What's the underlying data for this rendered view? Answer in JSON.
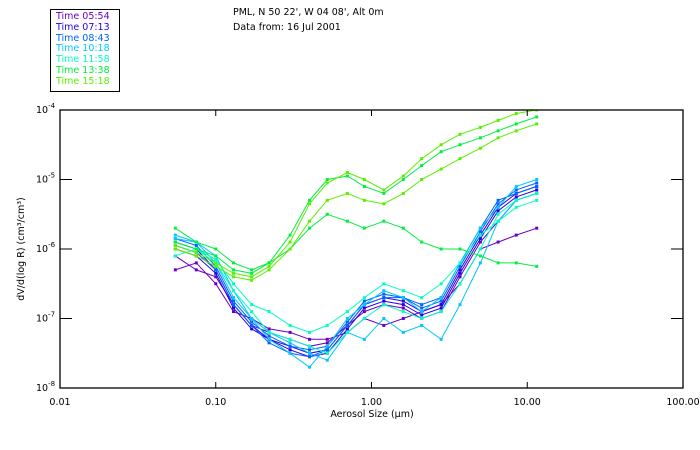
{
  "header": {
    "line1": "PML, N 50 22', W 04 08', Alt 0m",
    "line2": "Data from: 16 Jul 2001"
  },
  "chart_data": {
    "type": "line",
    "xlabel": "Aerosol Size (µm)",
    "ylabel": "dV/d(log R) (cm³/cm³)",
    "xscale": "log",
    "yscale": "log",
    "xlim": [
      0.01,
      100
    ],
    "ylim": [
      1e-08,
      0.0001
    ],
    "xticks": [
      "0.01",
      "0.10",
      "1.00",
      "10.00",
      "100.00"
    ],
    "yticks": [
      {
        "base": "10",
        "exp": "-4"
      },
      {
        "base": "10",
        "exp": "-5"
      },
      {
        "base": "10",
        "exp": "-6"
      },
      {
        "base": "10",
        "exp": "-7"
      },
      {
        "base": "10",
        "exp": "-8"
      }
    ],
    "legend_position": "top-left-outside",
    "x": [
      0.055,
      0.075,
      0.1,
      0.13,
      0.17,
      0.22,
      0.3,
      0.4,
      0.52,
      0.7,
      0.9,
      1.2,
      1.6,
      2.1,
      2.8,
      3.7,
      5,
      6.5,
      8.5,
      11.5
    ],
    "series": [
      {
        "name": "Time 05:54",
        "color": "#6a00c8",
        "log10_values": [
          [
            -6.1,
            -6.3,
            -6.4,
            -6.8,
            -7.1,
            -7.2,
            -7.3,
            -7.4,
            -7.35,
            -7.1,
            -6.9,
            -6.8,
            -6.85,
            -7.0,
            -6.9,
            -6.4,
            -5.9,
            -5.6,
            -5.3,
            -5.2
          ],
          [
            -6.3,
            -6.2,
            -6.5,
            -6.9,
            -7.0,
            -7.15,
            -7.2,
            -7.3,
            -7.3,
            -7.2,
            -7.0,
            -7.1,
            -7.0,
            -6.9,
            -6.8,
            -6.5,
            -6.0,
            -5.9,
            -5.8,
            -5.7
          ]
        ]
      },
      {
        "name": "Time 07:13",
        "color": "#2800e8",
        "log10_values": [
          [
            -5.9,
            -6.0,
            -6.3,
            -6.8,
            -7.1,
            -7.3,
            -7.4,
            -7.5,
            -7.45,
            -7.1,
            -6.8,
            -6.7,
            -6.75,
            -6.9,
            -6.8,
            -6.3,
            -5.8,
            -5.4,
            -5.2,
            -5.1
          ],
          [
            -6.0,
            -6.1,
            -6.35,
            -6.85,
            -7.15,
            -7.3,
            -7.45,
            -7.55,
            -7.5,
            -7.15,
            -6.85,
            -6.75,
            -6.8,
            -6.95,
            -6.85,
            -6.35,
            -5.85,
            -5.45,
            -5.25,
            -5.15
          ]
        ]
      },
      {
        "name": "Time 08:43",
        "color": "#0064ff",
        "log10_values": [
          [
            -5.85,
            -5.95,
            -6.25,
            -6.75,
            -7.05,
            -7.25,
            -7.4,
            -7.45,
            -7.4,
            -7.05,
            -6.75,
            -6.65,
            -6.7,
            -6.85,
            -6.75,
            -6.25,
            -5.75,
            -5.35,
            -5.15,
            -5.05
          ],
          [
            -5.95,
            -6.05,
            -6.3,
            -6.8,
            -7.1,
            -7.35,
            -7.5,
            -7.55,
            -7.45,
            -7.1,
            -6.8,
            -6.7,
            -6.7,
            -6.8,
            -6.7,
            -6.2,
            -5.7,
            -5.3,
            -5.2,
            -5.1
          ]
        ]
      },
      {
        "name": "Time 10:18",
        "color": "#00c8ff",
        "log10_values": [
          [
            -5.8,
            -5.9,
            -6.2,
            -6.7,
            -7.0,
            -7.3,
            -7.5,
            -7.7,
            -7.4,
            -7.0,
            -6.8,
            -6.6,
            -6.7,
            -6.9,
            -6.7,
            -6.2,
            -5.7,
            -5.4,
            -5.1,
            -5.0
          ],
          [
            -5.85,
            -5.9,
            -6.1,
            -6.6,
            -7.0,
            -7.2,
            -7.35,
            -7.5,
            -7.6,
            -7.2,
            -7.3,
            -7.0,
            -7.2,
            -7.1,
            -7.3,
            -6.8,
            -6.2,
            -5.6,
            -5.3,
            -5.2
          ]
        ]
      },
      {
        "name": "Time 11:58",
        "color": "#00ffc0",
        "log10_values": [
          [
            -6.1,
            -6.0,
            -6.2,
            -6.6,
            -6.9,
            -7.2,
            -7.3,
            -7.4,
            -7.5,
            -7.2,
            -7.0,
            -6.8,
            -6.9,
            -7.0,
            -6.9,
            -6.5,
            -6.0,
            -5.5,
            -5.3,
            -5.2
          ],
          [
            -5.9,
            -6.0,
            -6.15,
            -6.5,
            -6.8,
            -6.9,
            -7.1,
            -7.2,
            -7.1,
            -6.9,
            -6.7,
            -6.5,
            -6.6,
            -6.7,
            -6.5,
            -6.2,
            -5.8,
            -5.6,
            -5.4,
            -5.3
          ]
        ]
      },
      {
        "name": "Time 13:38",
        "color": "#00f040",
        "log10_values": [
          [
            -5.7,
            -5.9,
            -6.0,
            -6.2,
            -6.3,
            -6.2,
            -6.0,
            -5.7,
            -5.5,
            -5.6,
            -5.7,
            -5.6,
            -5.7,
            -5.9,
            -6.0,
            -6.0,
            -6.1,
            -6.2,
            -6.2,
            -6.25
          ],
          [
            -5.9,
            -6.0,
            -6.1,
            -6.3,
            -6.35,
            -6.2,
            -5.8,
            -5.3,
            -5.0,
            -4.95,
            -5.1,
            -5.2,
            -5.0,
            -4.8,
            -4.6,
            -4.5,
            -4.4,
            -4.3,
            -4.2,
            -4.1
          ]
        ]
      },
      {
        "name": "Time 15:18",
        "color": "#5af000",
        "log10_values": [
          [
            -5.95,
            -6.05,
            -6.2,
            -6.35,
            -6.4,
            -6.25,
            -5.9,
            -5.35,
            -5.05,
            -4.9,
            -5.0,
            -5.15,
            -4.95,
            -4.7,
            -4.5,
            -4.35,
            -4.25,
            -4.15,
            -4.05,
            -4.0
          ],
          [
            -6.0,
            -6.1,
            -6.25,
            -6.4,
            -6.45,
            -6.3,
            -6.0,
            -5.6,
            -5.3,
            -5.2,
            -5.3,
            -5.35,
            -5.2,
            -5.0,
            -4.85,
            -4.7,
            -4.55,
            -4.4,
            -4.3,
            -4.2
          ]
        ]
      }
    ]
  }
}
